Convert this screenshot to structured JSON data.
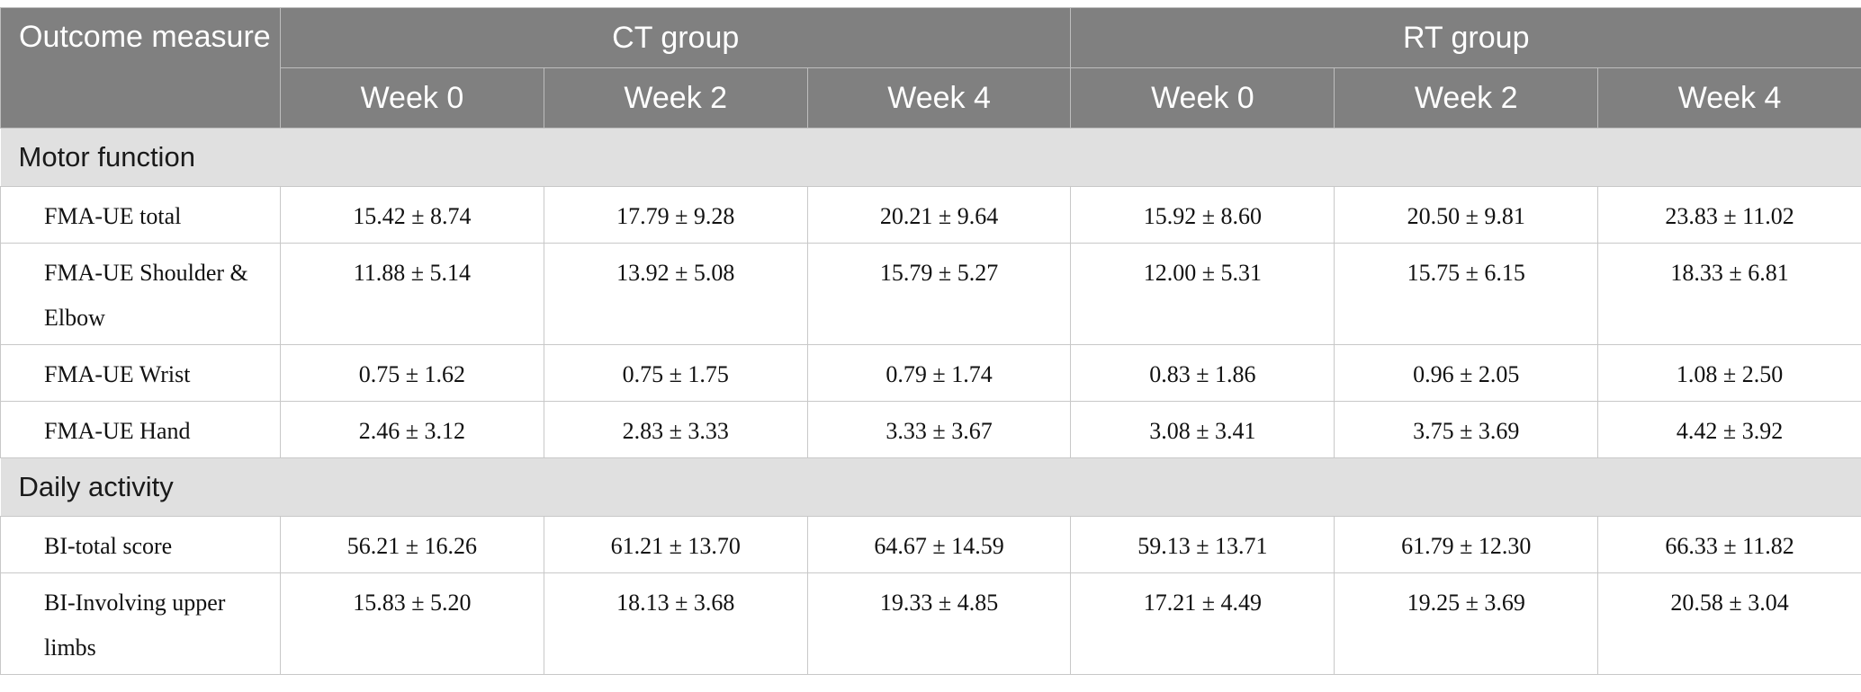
{
  "table": {
    "corner_header": "Outcome measure",
    "groups": [
      "CT group",
      "RT group"
    ],
    "weeks": [
      "Week 0",
      "Week 2",
      "Week 4",
      "Week 0",
      "Week 2",
      "Week 4"
    ],
    "sections": [
      {
        "title": "Motor function",
        "rows": [
          {
            "label": "FMA-UE total",
            "values": [
              "15.42 ± 8.74",
              "17.79 ± 9.28",
              "20.21 ± 9.64",
              "15.92 ± 8.60",
              "20.50 ± 9.81",
              "23.83 ± 11.02"
            ]
          },
          {
            "label": "FMA-UE Shoulder & Elbow",
            "values": [
              "11.88 ± 5.14",
              "13.92 ± 5.08",
              "15.79 ± 5.27",
              "12.00 ± 5.31",
              "15.75 ± 6.15",
              "18.33 ± 6.81"
            ]
          },
          {
            "label": "FMA-UE Wrist",
            "values": [
              "0.75 ± 1.62",
              "0.75 ± 1.75",
              "0.79 ± 1.74",
              "0.83 ± 1.86",
              "0.96 ± 2.05",
              "1.08 ± 2.50"
            ]
          },
          {
            "label": "FMA-UE Hand",
            "values": [
              "2.46 ± 3.12",
              "2.83 ± 3.33",
              "3.33 ± 3.67",
              "3.08 ± 3.41",
              "3.75 ± 3.69",
              "4.42 ± 3.92"
            ]
          }
        ]
      },
      {
        "title": "Daily activity",
        "rows": [
          {
            "label": "BI-total score",
            "values": [
              "56.21 ± 16.26",
              "61.21 ± 13.70",
              "64.67 ± 14.59",
              "59.13 ± 13.71",
              "61.79 ± 12.30",
              "66.33 ± 11.82"
            ]
          },
          {
            "label": "BI-Involving upper limbs",
            "values": [
              "15.83 ± 5.20",
              "18.13 ± 3.68",
              "19.33 ± 4.85",
              "17.21 ± 4.49",
              "19.25 ± 3.69",
              "20.58 ± 3.04"
            ]
          }
        ]
      }
    ]
  }
}
